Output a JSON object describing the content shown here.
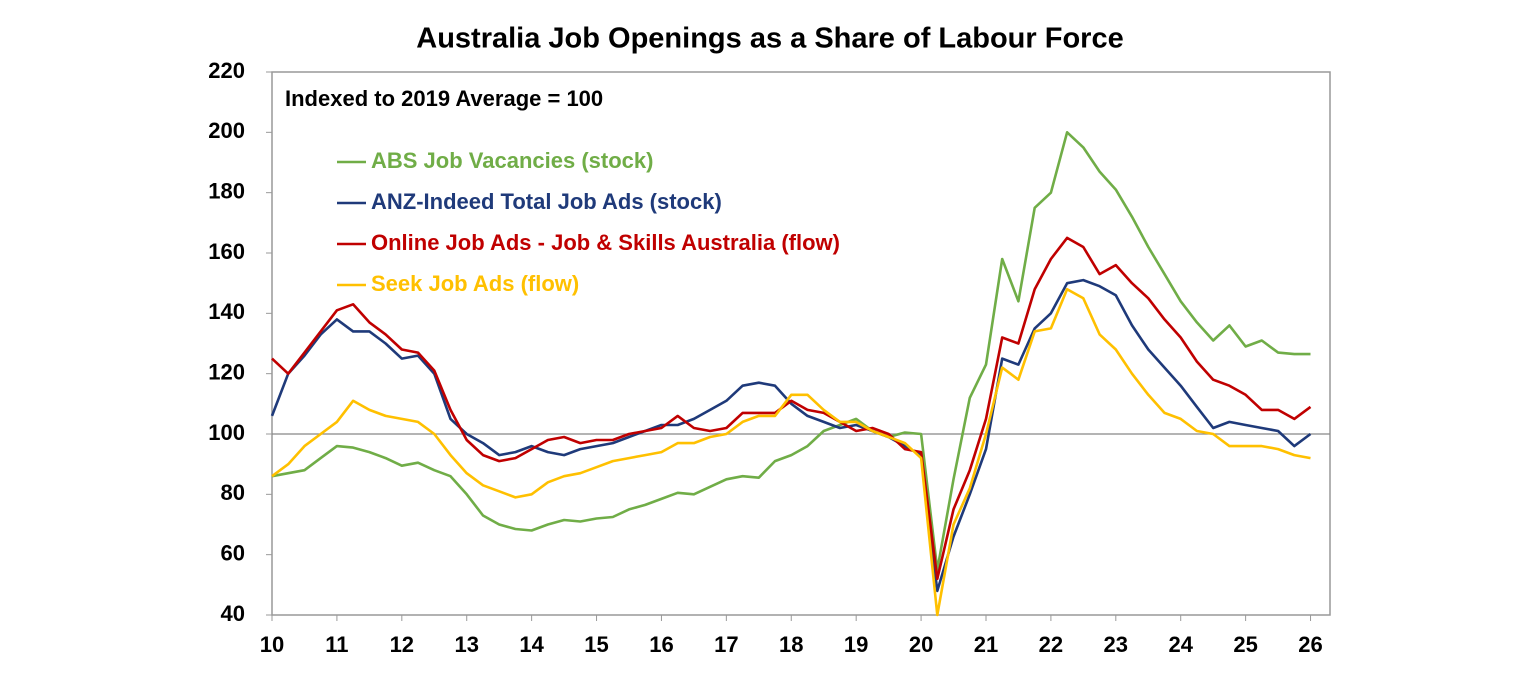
{
  "chart_data": {
    "type": "line",
    "title": "Australia Job Openings as a Share of Labour Force",
    "subtitle": "Indexed to 2019 Average = 100",
    "x": [
      10,
      10.25,
      10.5,
      10.75,
      11,
      11.25,
      11.5,
      11.75,
      12,
      12.25,
      12.5,
      12.75,
      13,
      13.25,
      13.5,
      13.75,
      14,
      14.25,
      14.5,
      14.75,
      15,
      15.25,
      15.5,
      15.75,
      16,
      16.25,
      16.5,
      16.75,
      17,
      17.25,
      17.5,
      17.75,
      18,
      18.25,
      18.5,
      18.75,
      19,
      19.25,
      19.5,
      19.75,
      20,
      20.25,
      20.5,
      20.75,
      21,
      21.25,
      21.5,
      21.75,
      22,
      22.25,
      22.5,
      22.75,
      23,
      23.25,
      23.5,
      23.75,
      24,
      24.25,
      24.5,
      24.75,
      25,
      25.25,
      25.5,
      25.75,
      26
    ],
    "series": [
      {
        "name": "ABS Job Vacancies (stock)",
        "color": "#70ad47",
        "values": [
          86,
          87,
          88,
          92,
          96,
          95.5,
          94,
          92,
          89.5,
          90.5,
          88,
          86,
          80,
          73,
          70,
          68.5,
          68,
          70,
          71.5,
          71,
          72,
          72.5,
          75,
          76.5,
          78.5,
          80.5,
          80,
          82.5,
          85,
          86,
          85.5,
          91,
          93,
          96,
          101,
          103,
          105,
          101,
          99,
          100.5,
          100,
          55,
          85,
          112,
          123,
          158,
          144,
          175,
          180,
          200,
          195,
          187,
          181,
          172,
          162,
          153,
          144,
          137,
          131,
          136,
          129,
          131,
          127,
          126.5,
          126.5
        ]
      },
      {
        "name": "ANZ-Indeed Total Job Ads (stock)",
        "color": "#1f3a7a",
        "values": [
          106,
          120,
          126,
          133,
          138,
          134,
          134,
          130,
          125,
          126,
          120,
          105,
          100,
          97,
          93,
          94,
          96,
          94,
          93,
          95,
          96,
          97,
          99,
          101,
          103,
          103,
          105,
          108,
          111,
          116,
          117,
          116,
          110,
          106,
          104,
          102,
          103,
          101,
          99,
          96,
          93,
          48,
          66,
          80,
          95,
          125,
          123,
          135,
          140,
          150,
          151,
          149,
          146,
          136,
          128,
          122,
          116,
          109,
          102,
          104,
          103,
          102,
          101,
          96,
          100
        ]
      },
      {
        "name": "Online Job Ads - Job & Skills Australia (flow)",
        "color": "#c00000",
        "values": [
          125,
          120,
          127,
          134,
          141,
          143,
          137,
          133,
          128,
          127,
          121,
          108,
          98,
          93,
          91,
          92,
          95,
          98,
          99,
          97,
          98,
          98,
          100,
          101,
          102,
          106,
          102,
          101,
          102,
          107,
          107,
          107,
          111,
          108,
          107,
          104,
          101,
          102,
          100,
          95,
          94,
          52,
          75,
          88,
          105,
          132,
          130,
          148,
          158,
          165,
          162,
          153,
          156,
          150,
          145,
          138,
          132,
          124,
          118,
          116,
          113,
          108,
          108,
          105,
          109
        ]
      },
      {
        "name": "Seek Job Ads (flow)",
        "color": "#ffc000",
        "values": [
          86,
          90,
          96,
          100,
          104,
          111,
          108,
          106,
          105,
          104,
          100,
          93,
          87,
          83,
          81,
          79,
          80,
          84,
          86,
          87,
          89,
          91,
          92,
          93,
          94,
          97,
          97,
          99,
          100,
          104,
          106,
          106,
          113,
          113,
          108,
          104,
          104,
          101,
          99,
          97,
          92,
          40,
          70,
          82,
          100,
          122,
          118,
          134,
          135,
          148,
          145,
          133,
          128,
          120,
          113,
          107,
          105,
          101,
          100,
          96,
          96,
          96,
          95,
          93,
          92
        ]
      }
    ],
    "xlim": [
      10,
      26.3
    ],
    "xticks": [
      10,
      11,
      12,
      13,
      14,
      15,
      16,
      17,
      18,
      19,
      20,
      21,
      22,
      23,
      24,
      25,
      26
    ],
    "ylim": [
      40,
      220
    ],
    "yticks": [
      40,
      60,
      80,
      100,
      120,
      140,
      160,
      180,
      200,
      220
    ],
    "reference_line": 100,
    "grid": false
  }
}
